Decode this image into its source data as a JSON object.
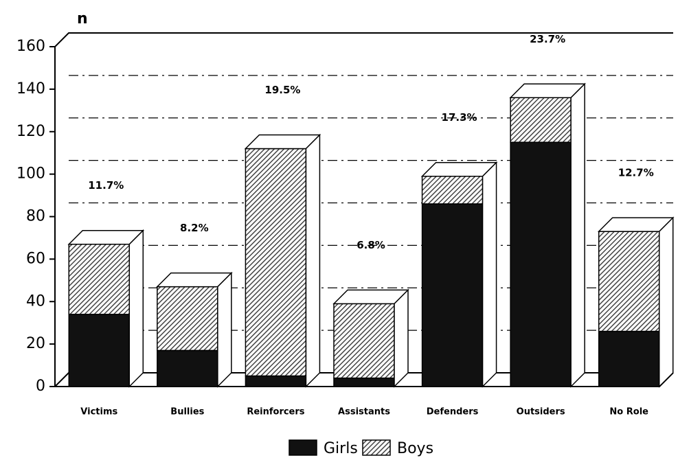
{
  "chart_data": {
    "type": "bar",
    "stacked": true,
    "y_label": "n",
    "categories": [
      "Victims",
      "Bullies",
      "Reinforcers",
      "Assistants",
      "Defenders",
      "Outsiders",
      "No Role"
    ],
    "series": [
      {
        "name": "Girls",
        "color": "#111111",
        "values": [
          34,
          17,
          5,
          4,
          86,
          115,
          26
        ]
      },
      {
        "name": "Boys",
        "color": "#444444",
        "hatch": true,
        "values": [
          33,
          30,
          107,
          35,
          13,
          21,
          47
        ]
      }
    ],
    "percent_labels": [
      "11.7%",
      "8.2%",
      "19.5%",
      "6.8%",
      "17.3%",
      "23.7%",
      "12.7%"
    ],
    "ylim": [
      0,
      160
    ],
    "yticks": [
      0,
      20,
      40,
      60,
      80,
      100,
      120,
      140,
      160
    ],
    "grid": true,
    "legend": "bottom"
  }
}
